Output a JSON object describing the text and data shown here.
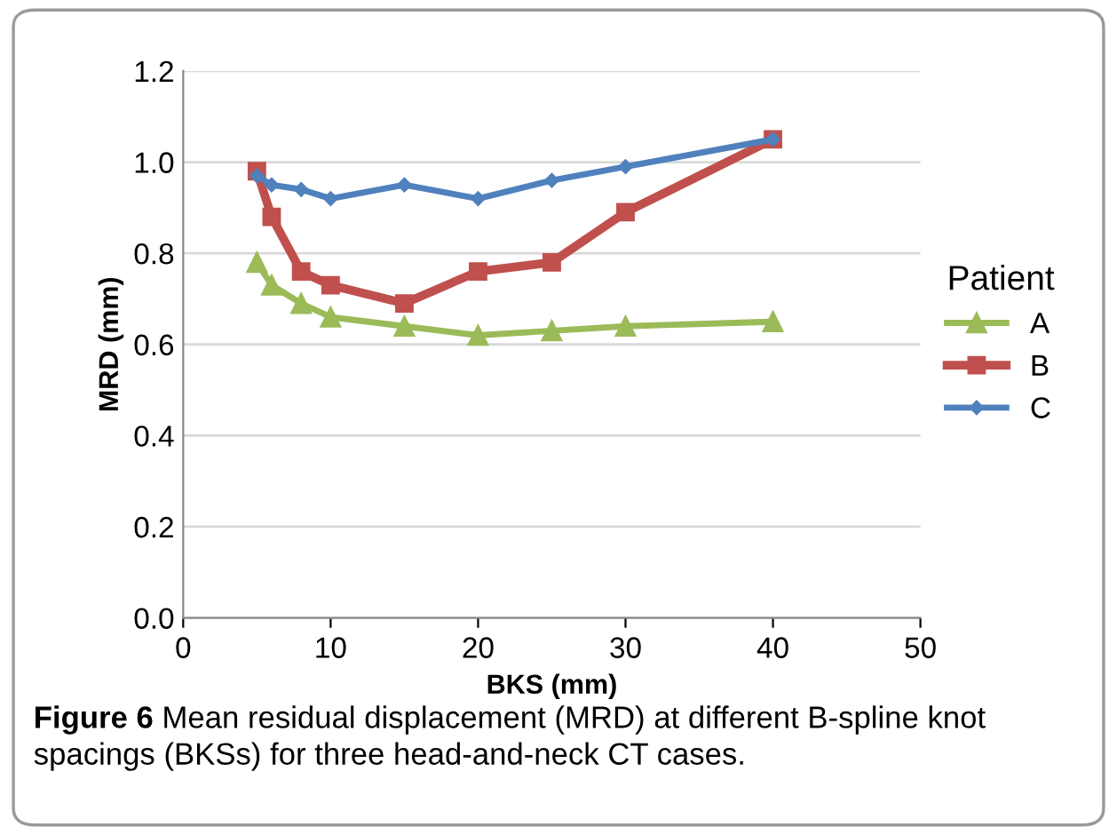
{
  "chart_data": {
    "type": "line",
    "xlabel": "BKS (mm)",
    "ylabel": "MRD (mm)",
    "legend_title": "Patient",
    "legend": "right",
    "x": [
      5,
      6,
      8,
      10,
      15,
      20,
      25,
      30,
      40
    ],
    "series": [
      {
        "name": "A",
        "color": "#9bbb59",
        "marker": "triangle",
        "values": [
          0.78,
          0.73,
          0.69,
          0.66,
          0.64,
          0.62,
          0.63,
          0.64,
          0.65
        ]
      },
      {
        "name": "B",
        "color": "#c0504d",
        "marker": "square",
        "values": [
          0.98,
          0.88,
          0.76,
          0.73,
          0.69,
          0.76,
          0.78,
          0.89,
          1.05
        ]
      },
      {
        "name": "C",
        "color": "#4f81bd",
        "marker": "diamond",
        "values": [
          0.97,
          0.95,
          0.94,
          0.92,
          0.95,
          0.92,
          0.96,
          0.99,
          1.05
        ]
      }
    ],
    "xlim": [
      0,
      50
    ],
    "xticks": [
      0,
      10,
      20,
      30,
      40,
      50
    ],
    "ylim": [
      0,
      1.2
    ],
    "yticks": [
      {
        "value": 0,
        "label": "0.0"
      },
      {
        "value": 0.2,
        "label": "0.2"
      },
      {
        "value": 0.4,
        "label": "0.4"
      },
      {
        "value": 0.6,
        "label": "0.6"
      },
      {
        "value": 0.8,
        "label": "0.8"
      },
      {
        "value": 1.0,
        "label": "1.0"
      },
      {
        "value": 1.2,
        "label": "1.2"
      }
    ],
    "grid": "y",
    "line_style": "solid",
    "annotations": [
      "Figure 6",
      "Mean residual displacement (MRD) at different B-spline knot spacings (BKSs) for three head-and-neck CT cases."
    ]
  }
}
